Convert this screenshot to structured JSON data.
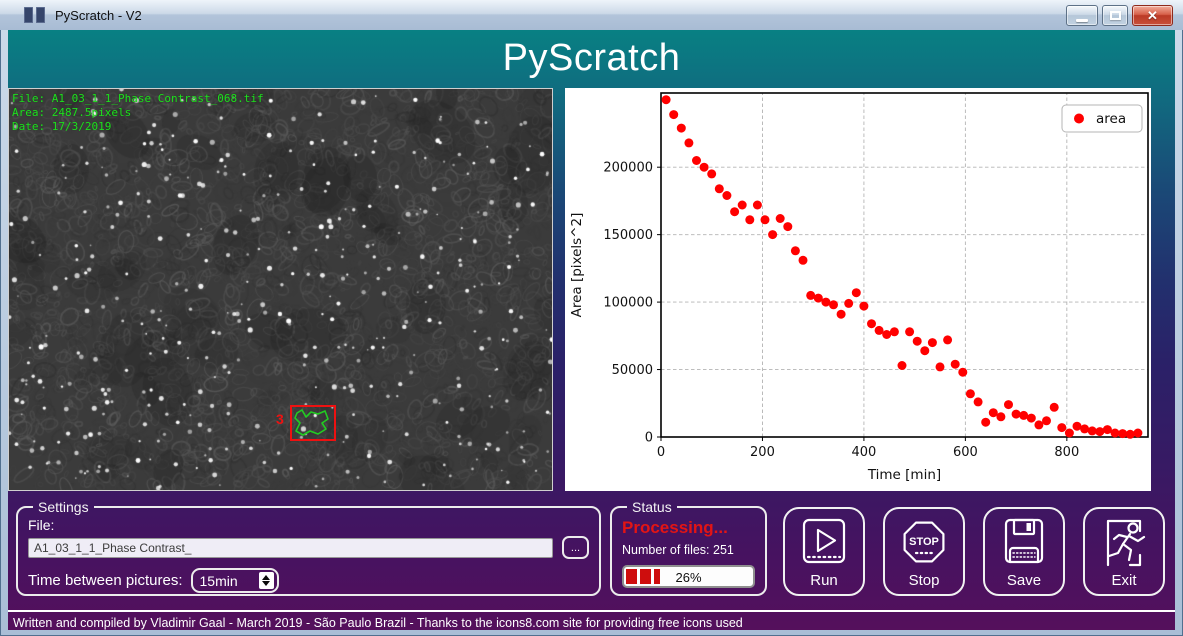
{
  "window": {
    "title": "PyScratch - V2"
  },
  "header": {
    "title": "PyScratch"
  },
  "icons": {
    "app": "double-bars",
    "minimize": "dash",
    "maximize": "square",
    "close": "x-cross",
    "browse": "ellipsis",
    "spinner": "up-down-triangles",
    "run": "play-triangle-in-square",
    "stop": "stop-octagon",
    "save": "floppy-disk",
    "exit": "runner-through-door"
  },
  "image_overlay": {
    "line1": "File: A1_03_1_1_Phase Contrast_068.tif",
    "line2": "Area: 2487.5pixels",
    "line3": "Date: 17/3/2019",
    "region_number": "3",
    "region_box_color": "#ee1111",
    "contour_color": "#22cc22",
    "text_color": "#1fdd1f"
  },
  "chart_data": {
    "type": "scatter",
    "title": "",
    "xlabel": "Time [min]",
    "ylabel": "Area [pixels^2]",
    "xlim": [
      0,
      960
    ],
    "ylim": [
      0,
      255000
    ],
    "xticks": [
      0,
      200,
      400,
      600,
      800
    ],
    "yticks": [
      0,
      50000,
      100000,
      150000,
      200000
    ],
    "grid": true,
    "legend_position": "upper right",
    "series": [
      {
        "name": "area",
        "color": "#ff0000",
        "x": [
          10,
          25,
          40,
          55,
          70,
          85,
          100,
          115,
          130,
          145,
          160,
          175,
          190,
          205,
          220,
          235,
          250,
          265,
          280,
          295,
          310,
          325,
          340,
          355,
          370,
          385,
          400,
          415,
          430,
          445,
          460,
          475,
          490,
          505,
          520,
          535,
          550,
          565,
          580,
          595,
          610,
          625,
          640,
          655,
          670,
          685,
          700,
          715,
          730,
          745,
          760,
          775,
          790,
          805,
          820,
          835,
          850,
          865,
          880,
          895,
          910,
          925,
          940
        ],
        "y": [
          250000,
          239000,
          229000,
          218000,
          205000,
          200000,
          195000,
          184000,
          179000,
          167000,
          172000,
          161000,
          172000,
          161000,
          150000,
          162000,
          156000,
          138000,
          131000,
          105000,
          103000,
          100000,
          98000,
          91000,
          99000,
          107000,
          97000,
          84000,
          79000,
          76000,
          78000,
          53000,
          78000,
          71000,
          64000,
          70000,
          52000,
          72000,
          54000,
          48000,
          32000,
          26000,
          11000,
          18000,
          15000,
          24000,
          17000,
          16000,
          14000,
          9000,
          12000,
          22000,
          7000,
          3000,
          8000,
          6000,
          4500,
          4000,
          5500,
          3000,
          2500,
          2000,
          3000
        ]
      }
    ]
  },
  "settings": {
    "group_label": "Settings",
    "file_label": "File:",
    "file_value": "A1_03_1_1_Phase Contrast_",
    "browse_label": "...",
    "time_label": "Time between pictures:",
    "time_value": "15min"
  },
  "status": {
    "group_label": "Status",
    "state_text": "Processing...",
    "state_color": "#e31414",
    "files_text": "Number of files: 251",
    "progress_value": 26,
    "progress_percent": "26%"
  },
  "action_buttons": [
    {
      "id": "run",
      "label": "Run"
    },
    {
      "id": "stop",
      "label": "Stop"
    },
    {
      "id": "save",
      "label": "Save"
    },
    {
      "id": "exit",
      "label": "Exit"
    }
  ],
  "footer": {
    "credits": "Written and compiled by Vladimir Gaal - March 2019 - São Paulo Brazil - Thanks to the icons8.com site for providing free icons used"
  }
}
